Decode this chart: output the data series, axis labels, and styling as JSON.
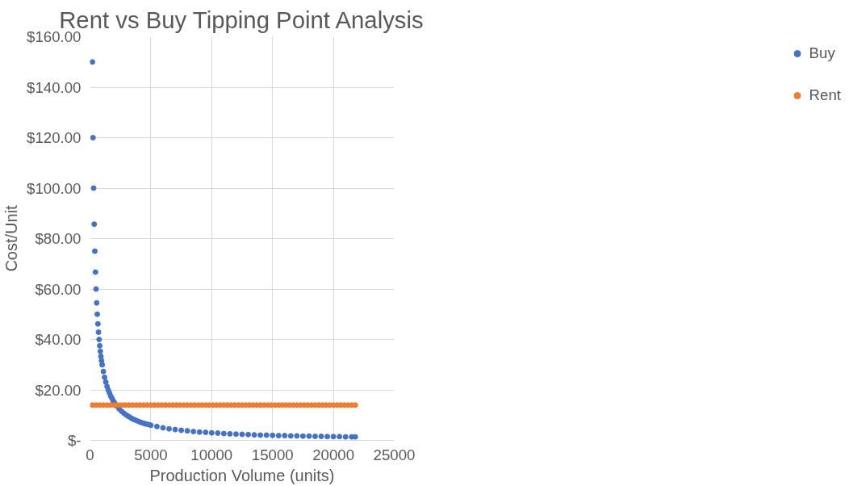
{
  "chart_data": {
    "type": "scatter",
    "title": "Rent vs Buy Tipping Point Analysis",
    "xlabel": "Production Volume (units)",
    "ylabel": "Cost/Unit",
    "xlim": [
      0,
      25000
    ],
    "xticks": [
      0,
      5000,
      10000,
      15000,
      20000,
      25000
    ],
    "ylim": [
      0,
      160
    ],
    "yticks": [
      {
        "value": 0,
        "label": "$-"
      },
      {
        "value": 20,
        "label": "$20.00"
      },
      {
        "value": 40,
        "label": "$40.00"
      },
      {
        "value": 60,
        "label": "$60.00"
      },
      {
        "value": 80,
        "label": "$80.00"
      },
      {
        "value": 100,
        "label": "$100.00"
      },
      {
        "value": 120,
        "label": "$120.00"
      },
      {
        "value": 140,
        "label": "$140.00"
      },
      {
        "value": 160,
        "label": "$160.00"
      }
    ],
    "grid": true,
    "legend": "right",
    "marker": "circle",
    "series": [
      {
        "name": "Buy",
        "color": "#4472c4",
        "x": [
          200,
          250,
          300,
          350,
          400,
          450,
          500,
          550,
          600,
          650,
          700,
          750,
          800,
          850,
          900,
          950,
          1000,
          1100,
          1200,
          1300,
          1400,
          1500,
          1600,
          1700,
          1800,
          1900,
          2000,
          2200,
          2400,
          2600,
          2800,
          3000,
          3200,
          3400,
          3600,
          3800,
          4000,
          4200,
          4400,
          4600,
          4800,
          5000,
          5500,
          6000,
          6500,
          7000,
          7500,
          8000,
          8500,
          9000,
          9500,
          10000,
          10500,
          11000,
          11500,
          12000,
          12500,
          13000,
          13500,
          14000,
          14500,
          15000,
          15500,
          16000,
          16500,
          17000,
          17500,
          18000,
          18500,
          19000,
          19500,
          20000,
          20500,
          21000,
          21500,
          21800
        ],
        "values": [
          150,
          120,
          100,
          85.7,
          75,
          66.7,
          60,
          54.5,
          50,
          46.2,
          42.9,
          40,
          37.5,
          35.3,
          33.3,
          31.6,
          30,
          27.3,
          25,
          23.1,
          21.4,
          20,
          18.8,
          17.6,
          16.7,
          15.8,
          15,
          13.6,
          12.5,
          11.5,
          10.7,
          10,
          9.4,
          8.8,
          8.3,
          7.9,
          7.5,
          7.1,
          6.8,
          6.5,
          6.3,
          6,
          5.5,
          5,
          4.6,
          4.3,
          4,
          3.8,
          3.5,
          3.3,
          3.2,
          3,
          2.9,
          2.7,
          2.6,
          2.5,
          2.4,
          2.3,
          2.2,
          2.1,
          2.1,
          2,
          1.9,
          1.9,
          1.8,
          1.8,
          1.7,
          1.7,
          1.6,
          1.6,
          1.5,
          1.5,
          1.5,
          1.4,
          1.4,
          1.4
        ]
      },
      {
        "name": "Rent",
        "color": "#ed7d31",
        "x": [
          200,
          500,
          800,
          1100,
          1400,
          1700,
          2000,
          2300,
          2600,
          2900,
          3200,
          3500,
          3800,
          4100,
          4400,
          4700,
          5000,
          5300,
          5600,
          5900,
          6200,
          6500,
          6800,
          7100,
          7400,
          7700,
          8000,
          8300,
          8600,
          8900,
          9200,
          9500,
          9800,
          10100,
          10400,
          10700,
          11000,
          11300,
          11600,
          11900,
          12200,
          12500,
          12800,
          13100,
          13400,
          13700,
          14000,
          14300,
          14600,
          14900,
          15200,
          15500,
          15800,
          16100,
          16400,
          16700,
          17000,
          17300,
          17600,
          17900,
          18200,
          18500,
          18800,
          19100,
          19400,
          19700,
          20000,
          20300,
          20600,
          20900,
          21200,
          21500,
          21800
        ],
        "values": [
          14,
          14,
          14,
          14,
          14,
          14,
          14,
          14,
          14,
          14,
          14,
          14,
          14,
          14,
          14,
          14,
          14,
          14,
          14,
          14,
          14,
          14,
          14,
          14,
          14,
          14,
          14,
          14,
          14,
          14,
          14,
          14,
          14,
          14,
          14,
          14,
          14,
          14,
          14,
          14,
          14,
          14,
          14,
          14,
          14,
          14,
          14,
          14,
          14,
          14,
          14,
          14,
          14,
          14,
          14,
          14,
          14,
          14,
          14,
          14,
          14,
          14,
          14,
          14,
          14,
          14,
          14,
          14,
          14,
          14,
          14,
          14,
          14
        ]
      }
    ]
  }
}
